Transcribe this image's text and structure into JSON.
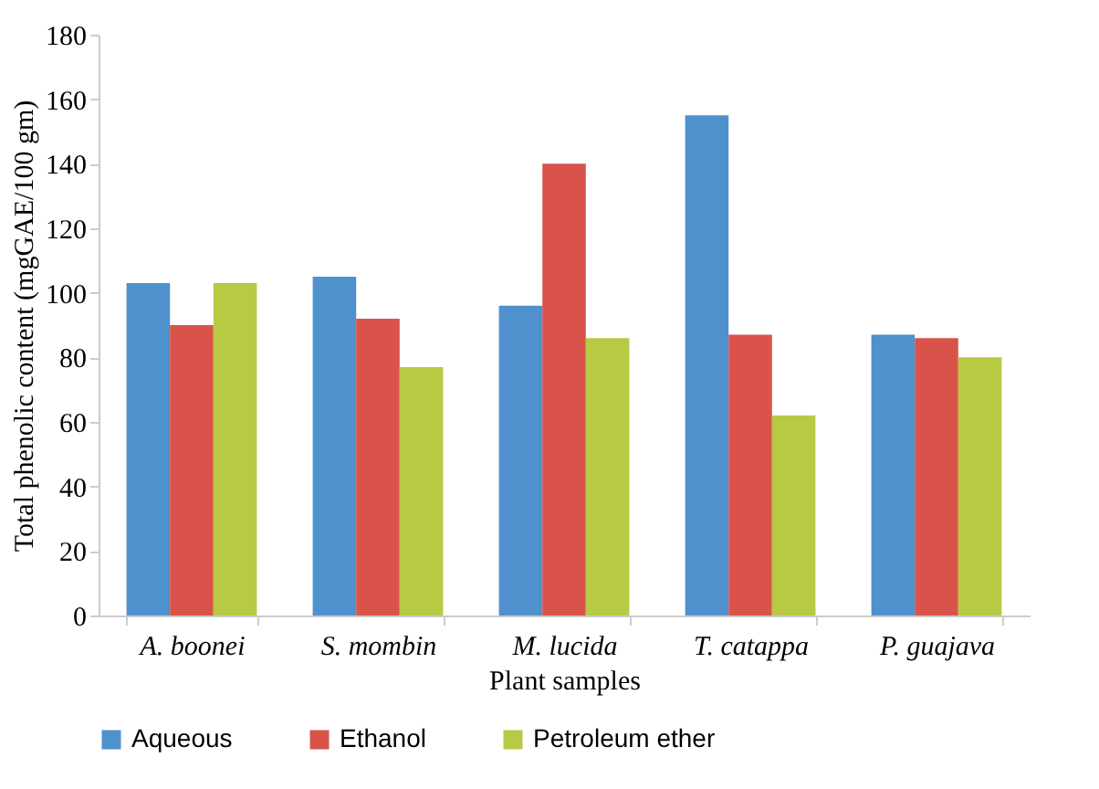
{
  "chart_data": {
    "type": "bar",
    "xlabel": "Plant samples",
    "ylabel": "Total phenolic content (mgGAE/100 gm)",
    "categories": [
      "A. boonei",
      "S. mombin",
      "M. lucida",
      "T. catappa",
      "P. guajava"
    ],
    "series": [
      {
        "name": "Aqueous",
        "color": "#4f91cd",
        "values": [
          103,
          105,
          96,
          155,
          87
        ]
      },
      {
        "name": "Ethanol",
        "color": "#d9534a",
        "values": [
          90,
          92,
          140,
          87,
          86
        ]
      },
      {
        "name": "Petroleum ether",
        "color": "#b8c944",
        "values": [
          103,
          77,
          86,
          62,
          80
        ]
      }
    ],
    "ylim": [
      0,
      180
    ],
    "yticks": [
      0,
      20,
      40,
      60,
      80,
      100,
      120,
      140,
      160,
      180
    ],
    "grid": false,
    "legend": "bottom"
  }
}
